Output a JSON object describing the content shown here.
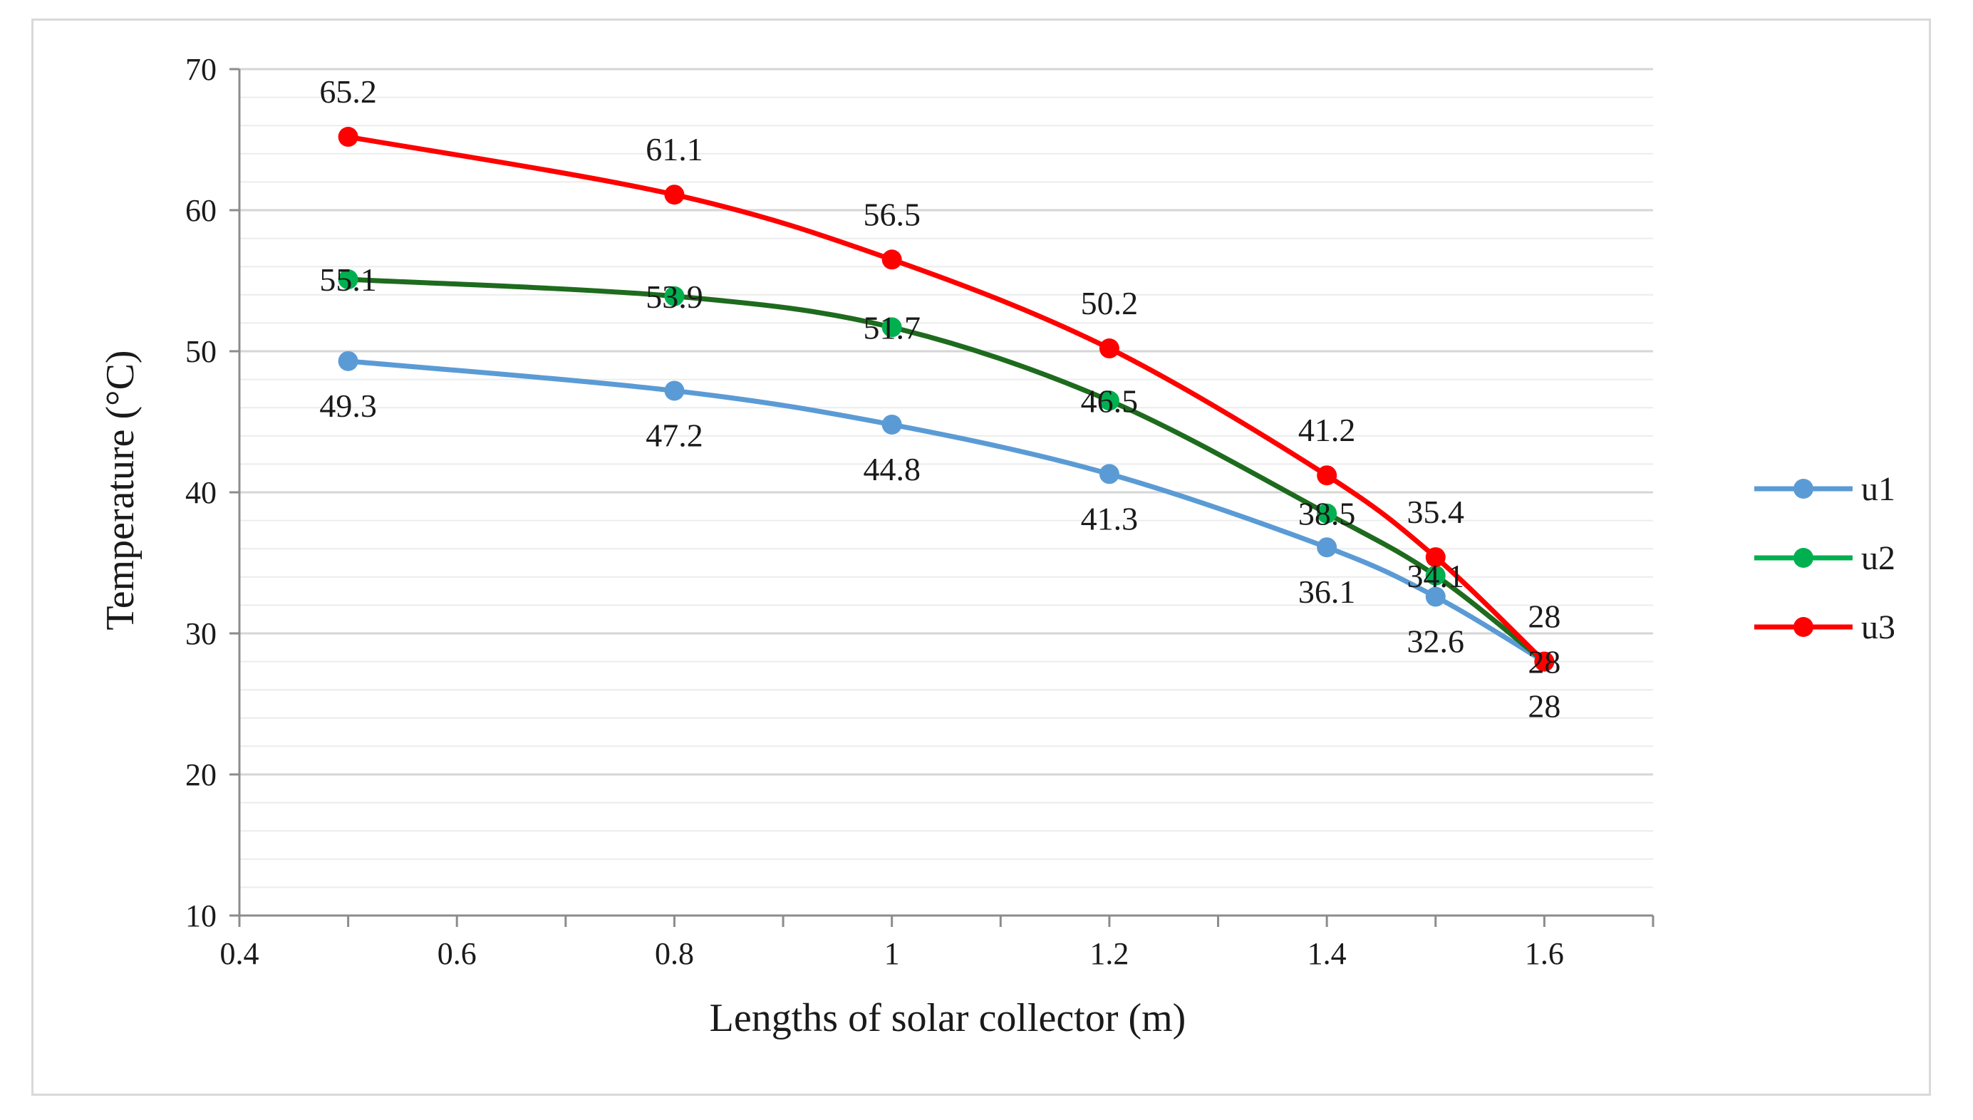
{
  "chart_data": {
    "type": "line",
    "title": "",
    "xlabel": "Lengths  of solar collector (m)",
    "ylabel": "Temperature (°C)",
    "xlim": [
      0.4,
      1.7
    ],
    "ylim": [
      10,
      70
    ],
    "x_ticks": [
      0.4,
      0.6,
      0.8,
      1.0,
      1.2,
      1.4,
      1.6
    ],
    "x_tick_labels": [
      "0.4",
      "0.6",
      "0.8",
      "1",
      "1.2",
      "1.4",
      "1.6"
    ],
    "y_ticks": [
      10,
      20,
      30,
      40,
      50,
      60,
      70
    ],
    "y_tick_labels": [
      "10",
      "20",
      "30",
      "40",
      "50",
      "60",
      "70"
    ],
    "minor_grid_step": 2,
    "grid": true,
    "legend_position": "right",
    "x": [
      0.5,
      0.8,
      1.0,
      1.2,
      1.4,
      1.5,
      1.6
    ],
    "series": [
      {
        "name": "u1",
        "color": "#5b9bd5",
        "values": [
          49.3,
          47.2,
          44.8,
          41.3,
          36.1,
          32.6,
          28
        ],
        "labels": [
          "49.3",
          "47.2",
          "44.8",
          "41.3",
          "36.1",
          "32.6",
          "28"
        ],
        "label_position": "below"
      },
      {
        "name": "u2",
        "color": "#00b050",
        "line_color": "#1e6b1e",
        "values": [
          55.1,
          53.9,
          51.7,
          46.5,
          38.5,
          34.1,
          28
        ],
        "labels": [
          "55.1",
          "53.9",
          "51.7",
          "46.5",
          "38.5",
          "34.1",
          "28"
        ],
        "label_position": "center"
      },
      {
        "name": "u3",
        "color": "#ff0000",
        "values": [
          65.2,
          61.1,
          56.5,
          50.2,
          41.2,
          35.4,
          28
        ],
        "labels": [
          "65.2",
          "61.1",
          "56.5",
          "50.2",
          "41.2",
          "35.4",
          "28"
        ],
        "label_position": "above"
      }
    ]
  }
}
